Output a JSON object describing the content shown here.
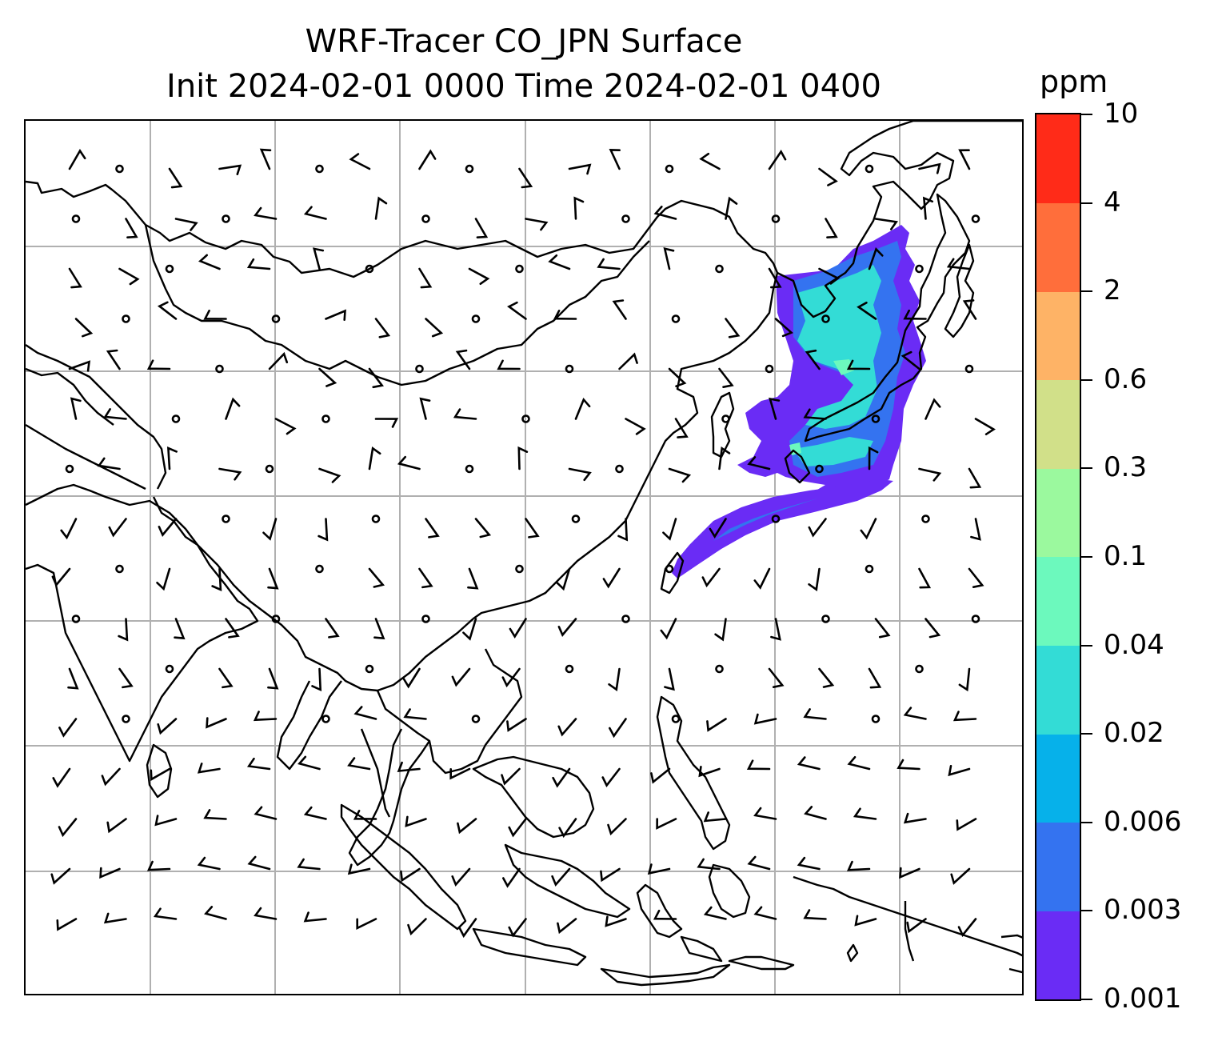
{
  "title_line1": "WRF-Tracer CO_JPN Surface",
  "title_line2": "Init 2024-02-01 0000 Time 2024-02-01 0400",
  "colorbar": {
    "unit": "ppm",
    "tick_labels": [
      "0.001",
      "0.003",
      "0.006",
      "0.02",
      "0.04",
      "0.1",
      "0.3",
      "0.6",
      "2",
      "4",
      "10"
    ],
    "colors": [
      "#6a2cf5",
      "#3473f0",
      "#06b1ea",
      "#33dcd6",
      "#6cf9bd",
      "#9bf99e",
      "#d1e089",
      "#feb366",
      "#ff6e3b",
      "#ff2b18"
    ]
  },
  "map": {
    "gridlines": true,
    "coastline_color": "#000000",
    "gridline_color": "#b0b0b0",
    "wind_barb_color": "#000000",
    "plume_colors": {
      "light": "#6a2cf5",
      "mid": "#3473f0",
      "high": "#33dcd6",
      "peak": "#6cf9bd"
    }
  }
}
